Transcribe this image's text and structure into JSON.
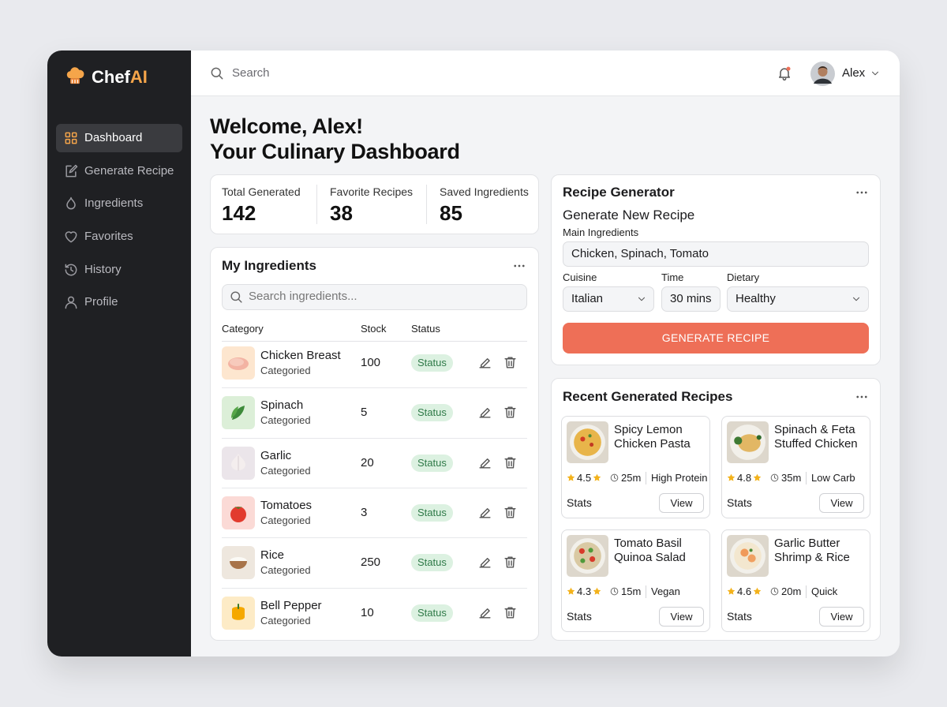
{
  "brand": {
    "part1": "Chef",
    "part2": "AI"
  },
  "nav": [
    "Dashboard",
    "Generate Recipe",
    "Ingredients",
    "Favorites",
    "History",
    "Profile"
  ],
  "topbar": {
    "search_placeholder": "Search",
    "user": "Alex"
  },
  "welcome": {
    "line1": "Welcome, Alex!",
    "line2": "Your Culinary Dashboard"
  },
  "stats": [
    {
      "label": "Total Generated",
      "value": 142
    },
    {
      "label": "Favorite Recipes",
      "value": 38
    },
    {
      "label": "Saved Ingredients",
      "value": 85
    }
  ],
  "ingredients": {
    "title": "My Ingredients",
    "search_placeholder": "Search ingredients...",
    "columns": [
      "Category",
      "Stock",
      "Status"
    ],
    "rows": [
      {
        "name": "Chicken Breast",
        "category": "Categoried",
        "stock": 100,
        "status": "Status"
      },
      {
        "name": "Spinach",
        "category": "Categoried",
        "stock": 5,
        "status": "Status"
      },
      {
        "name": "Garlic",
        "category": "Categoried",
        "stock": 20,
        "status": "Status"
      },
      {
        "name": "Tomatoes",
        "category": "Categoried",
        "stock": 3,
        "status": "Status"
      },
      {
        "name": "Rice",
        "category": "Categoried",
        "stock": 250,
        "status": "Status"
      },
      {
        "name": "Bell Pepper",
        "category": "Categoried",
        "stock": 10,
        "status": "Status"
      }
    ]
  },
  "generator": {
    "title": "Recipe Generator",
    "subtitle": "Generate New Recipe",
    "main_label": "Main Ingredients",
    "main_value": "Chicken, Spinach, Tomato",
    "cuisine_label": "Cuisine",
    "cuisine_value": "Italian",
    "time_label": "Time",
    "time_value": "30 mins",
    "dietary_label": "Dietary",
    "dietary_value": "Healthy",
    "button": "GENERATE RECIPE"
  },
  "recent": {
    "title": "Recent Generated Recipes",
    "recipes": [
      {
        "name": "Spicy Lemon Chicken Pasta",
        "rating": 4.5,
        "time": "25m",
        "tag": "High Protein",
        "footer": "Stats",
        "action": "View"
      },
      {
        "name": "Spinach & Feta Stuffed Chicken",
        "rating": 4.8,
        "time": "35m",
        "tag": "Low Carb",
        "footer": "Stats",
        "action": "View"
      },
      {
        "name": "Tomato Basil Quinoa Salad",
        "rating": 4.3,
        "time": "15m",
        "tag": "Vegan",
        "footer": "Stats",
        "action": "View"
      },
      {
        "name": "Garlic Butter Shrimp & Rice",
        "rating": 4.6,
        "time": "20m",
        "tag": "Quick",
        "footer": "Stats",
        "action": "View"
      }
    ]
  }
}
